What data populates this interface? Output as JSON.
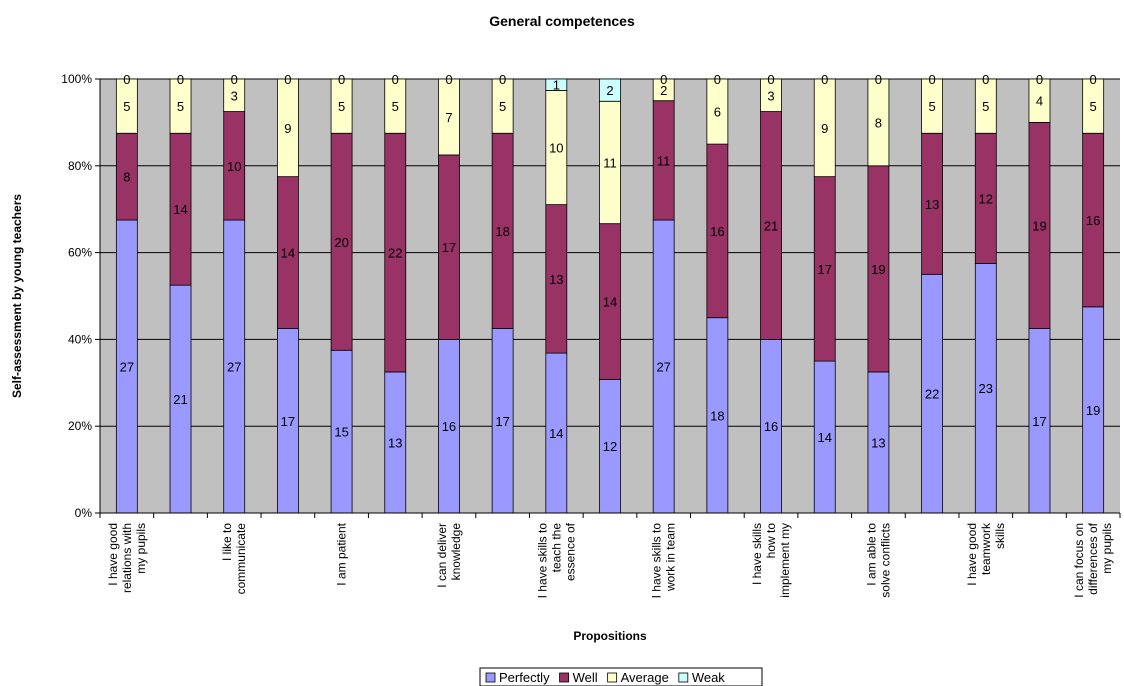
{
  "chart_data": {
    "type": "bar",
    "stacked": "percent",
    "title": "General competences",
    "xlabel": "Propositions",
    "ylabel": "Self-assessment by young teachers",
    "ylim": [
      0,
      100
    ],
    "yticks": [
      "0%",
      "20%",
      "40%",
      "60%",
      "80%",
      "100%"
    ],
    "grid": true,
    "legend_position": "bottom",
    "categories": [
      [
        "I have good",
        "relations with",
        "my pupils"
      ],
      [],
      [
        "I like to",
        "communicate"
      ],
      [],
      [
        "I am patient"
      ],
      [],
      [
        "I can deliver",
        "knowledge"
      ],
      [],
      [
        "I have skills to",
        "teach the",
        "essence of"
      ],
      [],
      [
        "I have skills to",
        "work in team"
      ],
      [],
      [
        "I have skills",
        "how to",
        "implement my"
      ],
      [],
      [
        "I am able to",
        "solve conflicts"
      ],
      [],
      [
        "I have good",
        "teamwork",
        "skills"
      ],
      [],
      [
        "I can focus on",
        "differences of",
        "my pupils"
      ]
    ],
    "series": [
      {
        "name": "Perfectly",
        "color": "#9999ff",
        "values": [
          27,
          21,
          27,
          17,
          15,
          13,
          16,
          17,
          14,
          12,
          27,
          18,
          16,
          14,
          13,
          22,
          23,
          17,
          19
        ]
      },
      {
        "name": "Well",
        "color": "#993366",
        "values": [
          8,
          14,
          10,
          14,
          20,
          22,
          17,
          18,
          13,
          14,
          11,
          16,
          21,
          17,
          19,
          13,
          12,
          19,
          16
        ]
      },
      {
        "name": "Average",
        "color": "#ffffcc",
        "values": [
          5,
          5,
          3,
          9,
          5,
          5,
          7,
          5,
          10,
          11,
          2,
          6,
          3,
          9,
          8,
          5,
          5,
          4,
          5
        ]
      },
      {
        "name": "Weak",
        "color": "#ccffff",
        "values": [
          0,
          0,
          0,
          0,
          0,
          0,
          0,
          0,
          1,
          2,
          0,
          0,
          0,
          0,
          0,
          0,
          0,
          0,
          0
        ]
      }
    ]
  }
}
